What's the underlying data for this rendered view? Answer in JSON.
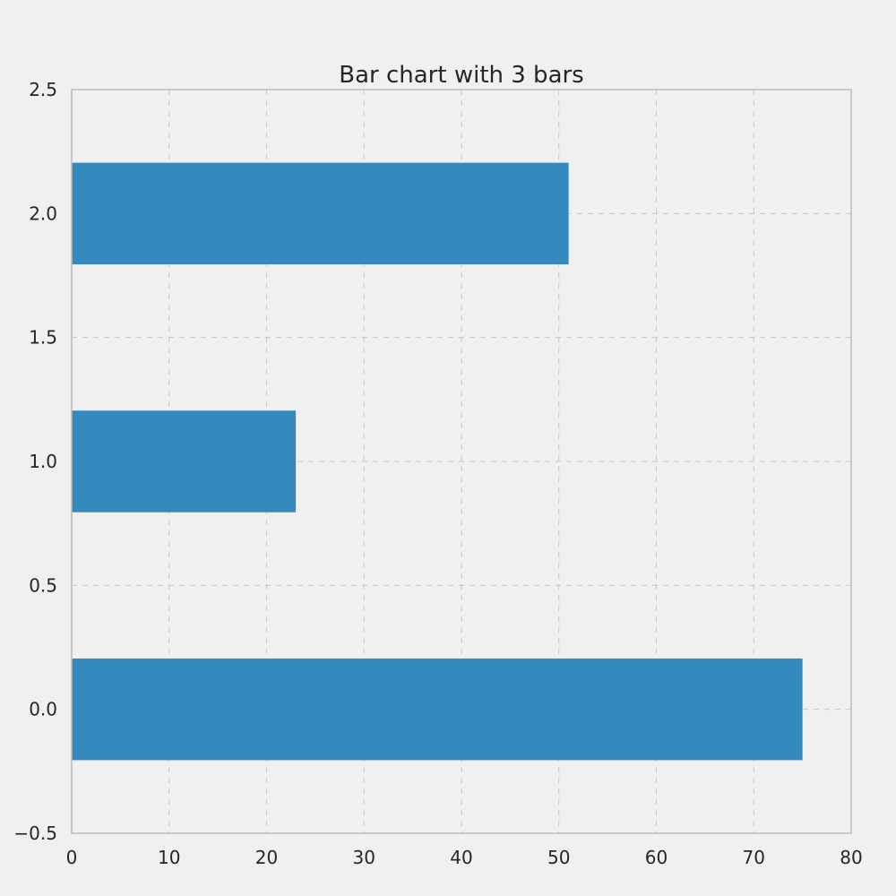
{
  "chart_data": {
    "type": "bar",
    "orientation": "horizontal",
    "title": "Bar chart with 3 bars",
    "xlabel": "",
    "ylabel": "",
    "categories": [
      0,
      1,
      2
    ],
    "values": [
      75,
      23,
      51
    ],
    "bar_height": 0.41,
    "xlim": [
      0,
      80
    ],
    "ylim": [
      -0.5,
      2.5
    ],
    "xticks": [
      0,
      10,
      20,
      30,
      40,
      50,
      60,
      70,
      80
    ],
    "xtick_labels": [
      "0",
      "10",
      "20",
      "30",
      "40",
      "50",
      "60",
      "70",
      "80"
    ],
    "yticks": [
      -0.5,
      0.0,
      0.5,
      1.0,
      1.5,
      2.0,
      2.5
    ],
    "ytick_labels": [
      "−0.5",
      "0.0",
      "0.5",
      "1.0",
      "1.5",
      "2.0",
      "2.5"
    ],
    "grid": true,
    "bar_color": "#348abd",
    "background_color": "#f0f0f0"
  }
}
